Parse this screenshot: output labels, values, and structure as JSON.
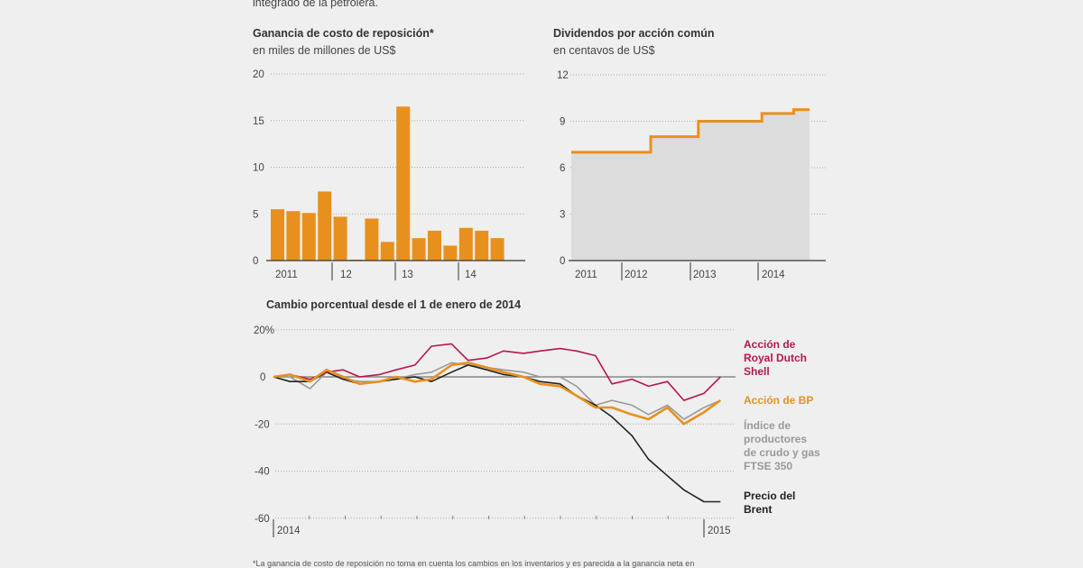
{
  "header_fragment": "integrado de la petrolera.",
  "footnote": "*La ganancia de costo de reposición no toma en cuenta los cambios en los inventarios y es parecida a la ganancia neta en",
  "colors": {
    "orange": "#e8901e",
    "shell": "#b5174a",
    "ftse": "#999999",
    "brent": "#222222",
    "area": "#dcdcdc",
    "grid": "#aaaaaa"
  },
  "chart_data": [
    {
      "type": "bar",
      "title": "Ganancia de costo de reposición*",
      "subtitle": "en miles de millones de US$",
      "ylim": [
        0,
        20
      ],
      "yticks": [
        "0",
        "5",
        "10",
        "15",
        "20"
      ],
      "year_labels": [
        "2011",
        "12",
        "13",
        "14"
      ],
      "categories": [
        "2011 T1",
        "2011 T2",
        "2011 T3",
        "2011 T4",
        "2012 T1",
        "2012 T2",
        "2012 T3",
        "2012 T4",
        "2013 T1",
        "2013 T2",
        "2013 T3",
        "2013 T4",
        "2014 T1",
        "2014 T2",
        "2014 T3"
      ],
      "values": [
        5.5,
        5.3,
        5.1,
        7.4,
        4.7,
        0.1,
        4.5,
        2.0,
        16.5,
        2.4,
        3.2,
        1.6,
        3.5,
        3.2,
        2.4
      ],
      "grid": true
    },
    {
      "type": "area",
      "title": "Dividendos por acción común",
      "subtitle": "en centavos de US$",
      "ylim": [
        0,
        12
      ],
      "yticks": [
        "0",
        "3",
        "6",
        "9",
        "12"
      ],
      "year_labels": [
        "2011",
        "2012",
        "2013",
        "2014"
      ],
      "categories": [
        "2011 T1",
        "2011 T2",
        "2011 T3",
        "2011 T4",
        "2012 T1",
        "2012 T2",
        "2012 T3",
        "2012 T4",
        "2013 T1",
        "2013 T2",
        "2013 T3",
        "2013 T4",
        "2014 T1",
        "2014 T2",
        "2014 T3"
      ],
      "values": [
        7,
        7,
        7,
        7,
        7,
        8,
        8,
        8,
        9,
        9,
        9,
        9,
        9.5,
        9.5,
        9.75
      ],
      "grid": true
    },
    {
      "type": "line",
      "title": "Cambio porcentual desde el 1 de enero de  2014",
      "ylim": [
        -60,
        20
      ],
      "yticks": [
        "-60",
        "-40",
        "-20",
        "0",
        "20%"
      ],
      "xticks": [
        "2014",
        "2015"
      ],
      "x": [
        "2014-01-01",
        "2014-01-15",
        "2014-02-01",
        "2014-02-15",
        "2014-03-01",
        "2014-03-15",
        "2014-04-01",
        "2014-04-15",
        "2014-05-01",
        "2014-05-15",
        "2014-06-01",
        "2014-06-15",
        "2014-07-01",
        "2014-07-15",
        "2014-08-01",
        "2014-08-15",
        "2014-09-01",
        "2014-09-15",
        "2014-10-01",
        "2014-10-15",
        "2014-11-01",
        "2014-11-15",
        "2014-12-01",
        "2014-12-15",
        "2015-01-01",
        "2015-01-15"
      ],
      "series": [
        {
          "name": "Índice de productores de crudo y gas FTSE 350",
          "color": "#999999",
          "values": [
            0,
            0,
            -5,
            2,
            -1,
            -2,
            -2,
            -1,
            1,
            2,
            6,
            5,
            4,
            3,
            2,
            0,
            0,
            -4,
            -12,
            -10,
            -12,
            -16,
            -12,
            -18,
            -13,
            -10
          ]
        },
        {
          "name": "Precio del Brent",
          "color": "#222222",
          "values": [
            0,
            -2,
            -2,
            2,
            -1,
            -3,
            -2,
            -1,
            0,
            -2,
            2,
            5,
            3,
            1,
            0,
            -2,
            -3,
            -8,
            -12,
            -17,
            -25,
            -35,
            -42,
            -48,
            -53,
            -53
          ]
        },
        {
          "name": "Acción de Royal Dutch Shell",
          "color": "#b5174a",
          "values": [
            0,
            1,
            -1,
            2,
            3,
            0,
            1,
            3,
            5,
            13,
            14,
            7,
            8,
            11,
            10,
            11,
            12,
            11,
            9,
            -3,
            -1,
            -4,
            -2,
            -10,
            -7,
            0
          ]
        },
        {
          "name": "Acción de BP",
          "color": "#e8901e",
          "values": [
            0,
            1,
            -2,
            3,
            0,
            -3,
            -2,
            0,
            -2,
            -1,
            5,
            6,
            4,
            2,
            0,
            -3,
            -4,
            -8,
            -13,
            -13,
            -16,
            -18,
            -13,
            -20,
            -15,
            -10
          ]
        }
      ],
      "legend": {
        "shell": [
          "Acción de",
          "Royal Dutch",
          "Shell"
        ],
        "bp": [
          "Acción de BP"
        ],
        "ftse": [
          "Índice de",
          "productores",
          "de crudo y gas",
          "FTSE 350"
        ],
        "brent": [
          "Precio del",
          "Brent"
        ]
      },
      "legend_placement": "right",
      "grid": true
    }
  ]
}
